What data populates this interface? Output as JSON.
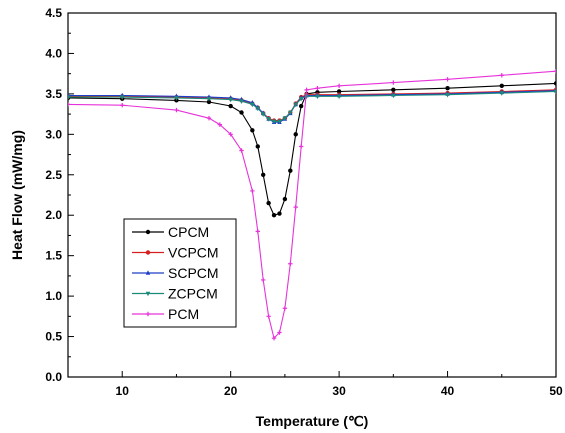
{
  "chart_data": {
    "type": "line",
    "xlabel": "Temperature (℃)",
    "ylabel": "Heat Flow (mW/mg)",
    "xlim": [
      5,
      50
    ],
    "ylim": [
      0.0,
      4.5
    ],
    "xticks": [
      10,
      20,
      30,
      40,
      50
    ],
    "yticks": [
      0.0,
      0.5,
      1.0,
      1.5,
      2.0,
      2.5,
      3.0,
      3.5,
      4.0,
      4.5
    ],
    "xtick_labels": [
      "10",
      "20",
      "30",
      "40",
      "50"
    ],
    "ytick_labels": [
      "0.0",
      "0.5",
      "1.0",
      "1.5",
      "2.0",
      "2.5",
      "3.0",
      "3.5",
      "4.0",
      "4.5"
    ],
    "grid": false,
    "legend_position": "bottom-left",
    "series": [
      {
        "name": "CPCM",
        "color": "#000000",
        "marker": "circle",
        "x": [
          5,
          10,
          15,
          18,
          20,
          21,
          22,
          22.5,
          23,
          23.5,
          24,
          24.5,
          25,
          25.5,
          26,
          26.5,
          27,
          28,
          30,
          35,
          40,
          45,
          50
        ],
        "y": [
          3.45,
          3.44,
          3.42,
          3.4,
          3.35,
          3.27,
          3.05,
          2.85,
          2.5,
          2.15,
          2.0,
          2.02,
          2.2,
          2.55,
          3.0,
          3.35,
          3.5,
          3.52,
          3.53,
          3.55,
          3.57,
          3.6,
          3.63
        ]
      },
      {
        "name": "VCPCM",
        "color": "#d62020",
        "marker": "circle",
        "x": [
          5,
          10,
          15,
          18,
          20,
          21,
          22,
          22.5,
          23,
          23.5,
          24,
          24.5,
          25,
          25.5,
          26,
          26.5,
          27,
          28,
          30,
          35,
          40,
          45,
          50
        ],
        "y": [
          3.47,
          3.47,
          3.46,
          3.45,
          3.44,
          3.42,
          3.38,
          3.33,
          3.26,
          3.2,
          3.17,
          3.17,
          3.2,
          3.27,
          3.38,
          3.46,
          3.49,
          3.49,
          3.49,
          3.5,
          3.51,
          3.53,
          3.55
        ]
      },
      {
        "name": "SCPCM",
        "color": "#1f3ec8",
        "marker": "triangle-up",
        "x": [
          5,
          10,
          15,
          18,
          20,
          21,
          22,
          22.5,
          23,
          23.5,
          24,
          24.5,
          25,
          25.5,
          26,
          26.5,
          27,
          28,
          30,
          35,
          40,
          45,
          50
        ],
        "y": [
          3.48,
          3.48,
          3.47,
          3.46,
          3.45,
          3.43,
          3.39,
          3.33,
          3.26,
          3.19,
          3.15,
          3.15,
          3.19,
          3.26,
          3.37,
          3.45,
          3.48,
          3.48,
          3.48,
          3.49,
          3.5,
          3.52,
          3.54
        ]
      },
      {
        "name": "ZCPCM",
        "color": "#1b8a7a",
        "marker": "triangle-down",
        "x": [
          5,
          10,
          15,
          18,
          20,
          21,
          22,
          22.5,
          23,
          23.5,
          24,
          24.5,
          25,
          25.5,
          26,
          26.5,
          27,
          28,
          30,
          35,
          40,
          45,
          50
        ],
        "y": [
          3.46,
          3.46,
          3.45,
          3.44,
          3.43,
          3.41,
          3.37,
          3.32,
          3.25,
          3.19,
          3.16,
          3.16,
          3.2,
          3.27,
          3.37,
          3.44,
          3.47,
          3.47,
          3.47,
          3.48,
          3.49,
          3.51,
          3.53
        ]
      },
      {
        "name": "PCM",
        "color": "#e633d9",
        "marker": "cross",
        "x": [
          5,
          10,
          15,
          18,
          19,
          20,
          21,
          22,
          22.5,
          23,
          23.5,
          24,
          24.5,
          25,
          25.5,
          26,
          26.5,
          27,
          28,
          30,
          35,
          40,
          45,
          50
        ],
        "y": [
          3.37,
          3.36,
          3.3,
          3.2,
          3.12,
          3.0,
          2.8,
          2.3,
          1.8,
          1.2,
          0.75,
          0.48,
          0.55,
          0.85,
          1.4,
          2.1,
          2.85,
          3.55,
          3.57,
          3.6,
          3.64,
          3.68,
          3.73,
          3.78
        ]
      }
    ]
  }
}
